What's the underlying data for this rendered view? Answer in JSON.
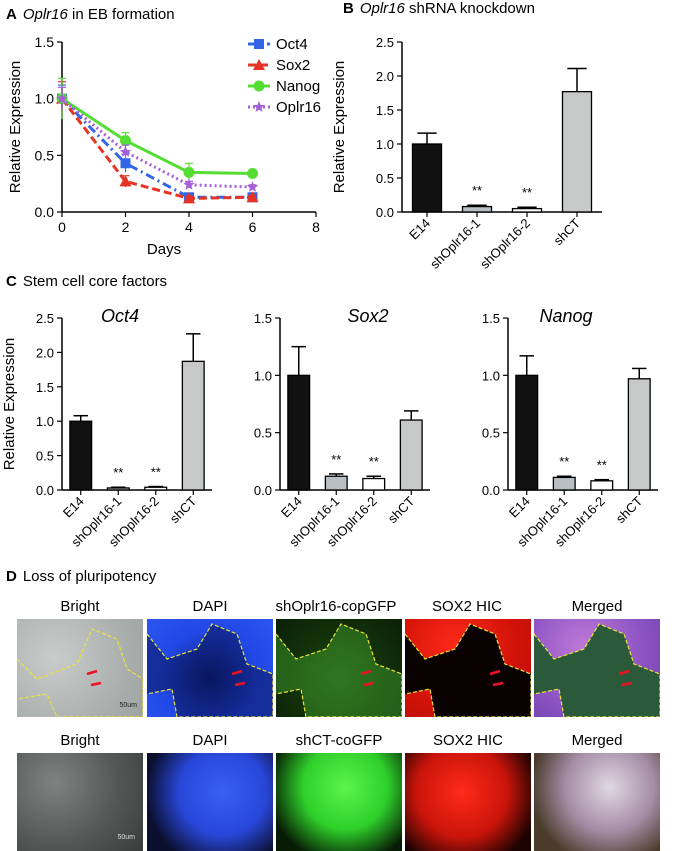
{
  "panels": {
    "a": {
      "letter": "A",
      "gene": "Oplr16",
      "rest": " in EB formation"
    },
    "b": {
      "letter": "B",
      "gene": "Oplr16",
      "rest": " shRNA knockdown"
    },
    "c": {
      "letter": "C",
      "title": "Stem cell core factors"
    },
    "d": {
      "letter": "D",
      "title": "Loss of pluripotency"
    }
  },
  "colors": {
    "oct4": "#3366e6",
    "sox2": "#e63323",
    "nanog": "#55dd33",
    "oplr16": "#a65fd9",
    "e14": "#111111",
    "sh1": "#b7bfc3",
    "sh2": "#ffffff",
    "shct": "#c7c9c9"
  },
  "chart_data": [
    {
      "id": "A",
      "type": "line",
      "xlabel": "Days",
      "ylabel": "Relative Expression",
      "x": [
        0,
        2,
        4,
        6
      ],
      "xlim": [
        0,
        8
      ],
      "ylim": [
        0,
        1.5
      ],
      "xticks": [
        "0",
        "2",
        "4",
        "6",
        "8"
      ],
      "yticks": [
        "0.0",
        "0.5",
        "1.0",
        "1.5"
      ],
      "legend_position": "top-right",
      "series": [
        {
          "name": "Oct4",
          "values": [
            1.0,
            0.43,
            0.13,
            0.13
          ],
          "err": [
            0.12,
            0.08,
            0.03,
            0.02
          ],
          "color": "#3366e6",
          "marker": "square",
          "dash": "dashdot"
        },
        {
          "name": "Sox2",
          "values": [
            1.0,
            0.27,
            0.12,
            0.13
          ],
          "err": [
            0.15,
            0.05,
            0.02,
            0.02
          ],
          "color": "#e63323",
          "marker": "triangle",
          "dash": "dashed"
        },
        {
          "name": "Nanog",
          "values": [
            1.0,
            0.63,
            0.35,
            0.34
          ],
          "err": [
            0.18,
            0.07,
            0.08,
            0.03
          ],
          "color": "#55dd33",
          "marker": "circle",
          "dash": "solid"
        },
        {
          "name": "Oplr16",
          "values": [
            1.0,
            0.53,
            0.24,
            0.22
          ],
          "err": [
            0.1,
            0.06,
            0.03,
            0.02
          ],
          "color": "#a65fd9",
          "marker": "star",
          "dash": "dotted"
        }
      ]
    },
    {
      "id": "B",
      "type": "bar",
      "ylabel": "Relative Expression",
      "categories": [
        "E14",
        "shOplr16-1",
        "shOplr16-2",
        "shCT"
      ],
      "values": [
        1.0,
        0.08,
        0.05,
        1.77
      ],
      "err": [
        0.16,
        0.02,
        0.02,
        0.34
      ],
      "significance": [
        "",
        "**",
        "**",
        ""
      ],
      "ylim": [
        0,
        2.5
      ],
      "yticks": [
        "0.0",
        "0.5",
        "1.0",
        "1.5",
        "2.0",
        "2.5"
      ]
    },
    {
      "id": "C-Oct4",
      "type": "bar",
      "title": "Oct4",
      "ylabel": "Relative Expression",
      "categories": [
        "E14",
        "shOplr16-1",
        "shOplr16-2",
        "shCT"
      ],
      "values": [
        1.0,
        0.03,
        0.04,
        1.87
      ],
      "err": [
        0.08,
        0.01,
        0.01,
        0.4
      ],
      "significance": [
        "",
        "**",
        "**",
        ""
      ],
      "ylim": [
        0,
        2.5
      ],
      "yticks": [
        "0.0",
        "0.5",
        "1.0",
        "1.5",
        "2.0",
        "2.5"
      ]
    },
    {
      "id": "C-Sox2",
      "type": "bar",
      "title": "Sox2",
      "ylabel": "",
      "categories": [
        "E14",
        "shOplr16-1",
        "shOplr16-2",
        "shCT"
      ],
      "values": [
        1.0,
        0.12,
        0.1,
        0.61
      ],
      "err": [
        0.25,
        0.02,
        0.02,
        0.08
      ],
      "significance": [
        "",
        "**",
        "**",
        ""
      ],
      "ylim": [
        0,
        1.5
      ],
      "yticks": [
        "0.0",
        "0.5",
        "1.0",
        "1.5"
      ]
    },
    {
      "id": "C-Nanog",
      "type": "bar",
      "title": "Nanog",
      "ylabel": "",
      "categories": [
        "E14",
        "shOplr16-1",
        "shOplr16-2",
        "shCT"
      ],
      "values": [
        1.0,
        0.11,
        0.08,
        0.97
      ],
      "err": [
        0.17,
        0.01,
        0.01,
        0.09
      ],
      "significance": [
        "",
        "**",
        "**",
        ""
      ],
      "ylim": [
        0,
        1.5
      ],
      "yticks": [
        "0.0",
        "0.5",
        "1.0",
        "1.5"
      ]
    }
  ],
  "micrographs": {
    "row1": [
      "Bright",
      "DAPI",
      "shOplr16-copGFP",
      "SOX2 HIC",
      "Merged"
    ],
    "row2": [
      "Bright",
      "DAPI",
      "shCT-coGFP",
      "SOX2 HIC",
      "Merged"
    ],
    "scale_bar": "50um"
  }
}
